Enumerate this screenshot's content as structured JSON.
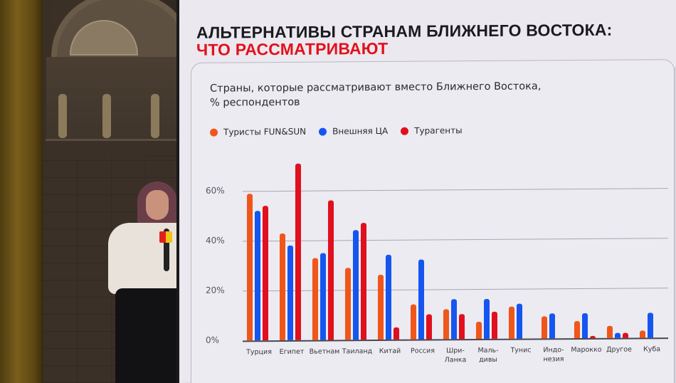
{
  "slide": {
    "title_line1": "АЛЬТЕРНАТИВЫ СТРАНАМ БЛИЖНЕГО ВОСТОКА:",
    "title_line2": "ЧТО РАССМАТРИВАЮТ"
  },
  "colors": {
    "accent_red": "#e3101b",
    "series_orange": "#f0561a",
    "series_blue": "#1656f0",
    "series_red": "#e0101e"
  },
  "chart_data": {
    "type": "bar",
    "title": "Страны, которые рассматривают вместо Ближнего Востока, % респондентов",
    "title_line1": "Страны, которые рассматривают вместо Ближнего Востока,",
    "title_line2": "% респондентов",
    "xlabel": "",
    "ylabel": "",
    "ylim": [
      0,
      75
    ],
    "yticks": [
      "60%",
      "40%",
      "20%",
      "0%"
    ],
    "ytick_values": [
      60,
      40,
      20,
      0
    ],
    "grid": true,
    "legend_position": "top-left",
    "categories": [
      "Турция",
      "Египет",
      "Вьетнам",
      "Таиланд",
      "Китай",
      "Россия",
      "Шри-Ланка",
      "Мальдивы",
      "Тунис",
      "Индонезия",
      "Марокко",
      "Другое",
      "Куба"
    ],
    "category_labels": [
      [
        "Турция"
      ],
      [
        "Египет"
      ],
      [
        "Вьетнам"
      ],
      [
        "Таиланд"
      ],
      [
        "Китай"
      ],
      [
        "Россия"
      ],
      [
        "Шри-",
        "Ланка"
      ],
      [
        "Маль-",
        "дивы"
      ],
      [
        "Тунис"
      ],
      [
        "Индо-",
        "незия"
      ],
      [
        "Марокко"
      ],
      [
        "Другое"
      ],
      [
        "Куба"
      ]
    ],
    "series": [
      {
        "name": "Туристы FUN&SUN",
        "color": "#f0561a",
        "values": [
          59,
          43,
          33,
          29,
          26,
          14,
          12,
          7,
          13,
          9,
          7,
          5,
          3
        ]
      },
      {
        "name": "Внешняя ЦА",
        "color": "#1656f0",
        "values": [
          52,
          38,
          35,
          44,
          34,
          32,
          16,
          16,
          14,
          10,
          10,
          2,
          10
        ]
      },
      {
        "name": "Турагенты",
        "color": "#e0101e",
        "values": [
          54,
          71,
          56,
          47,
          5,
          10,
          10,
          11,
          0,
          0,
          1,
          2,
          0
        ]
      }
    ]
  }
}
